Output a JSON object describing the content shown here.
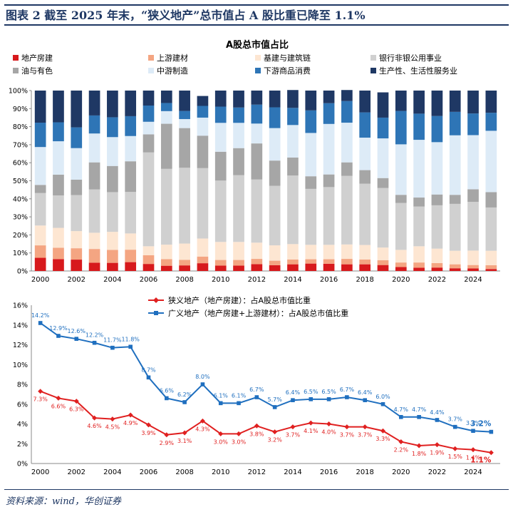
{
  "header": {
    "figure_title": "图表 2   截至 2025 年末，“狭义地产”总市值占 A 股比重已降至 1.1%",
    "source": "资料来源：wind，华创证券"
  },
  "chart_data": [
    {
      "type": "bar",
      "stacked": "percent",
      "title": "A股总市值占比",
      "xlabel": "",
      "ylabel": "",
      "ylim": [
        0,
        100
      ],
      "y_tick_suffix": "%",
      "y_ticks": [
        0,
        10,
        20,
        30,
        40,
        50,
        60,
        70,
        80,
        90,
        100
      ],
      "grid": false,
      "legend_position": "top",
      "categories": [
        "2000",
        "2001",
        "2002",
        "2003",
        "2004",
        "2005",
        "2006",
        "2007",
        "2008",
        "2009",
        "2010",
        "2011",
        "2012",
        "2013",
        "2014",
        "2015",
        "2016",
        "2017",
        "2018",
        "2019",
        "2020",
        "2021",
        "2022",
        "2023",
        "2024",
        "2025"
      ],
      "x_tick_labels": [
        "2000",
        "2002",
        "2004",
        "2006",
        "2008",
        "2010",
        "2012",
        "2014",
        "2016",
        "2018",
        "2020",
        "2022",
        "2024"
      ],
      "series": [
        {
          "name": "地产房建",
          "color": "#d7191c",
          "values": [
            7.3,
            6.6,
            6.3,
            4.6,
            4.5,
            4.9,
            3.9,
            2.9,
            3.1,
            4.3,
            3.0,
            3.0,
            3.8,
            3.2,
            3.7,
            4.1,
            4.0,
            3.7,
            3.7,
            3.3,
            2.2,
            1.8,
            1.9,
            1.5,
            1.4,
            1.1
          ]
        },
        {
          "name": "上游建材",
          "color": "#f4a582",
          "values": [
            6.9,
            6.3,
            6.3,
            7.6,
            7.2,
            6.9,
            4.8,
            3.7,
            3.1,
            3.7,
            3.1,
            3.1,
            2.9,
            2.5,
            2.7,
            2.4,
            2.5,
            3.0,
            2.7,
            2.7,
            2.5,
            2.9,
            2.5,
            2.2,
            1.9,
            2.1
          ]
        },
        {
          "name": "基建与建筑链",
          "color": "#fde6d2",
          "values": [
            11.0,
            11.0,
            9.5,
            9.0,
            10.0,
            9.0,
            5.0,
            8.0,
            9.0,
            10.0,
            10.0,
            10.0,
            9.0,
            8.5,
            8.5,
            8.0,
            8.0,
            8.0,
            8.0,
            7.0,
            7.0,
            9.0,
            8.0,
            7.5,
            8.0,
            8.0
          ]
        },
        {
          "name": "银行非银公用事业",
          "color": "#d0d0d0",
          "values": [
            18.0,
            18.0,
            20.0,
            24.0,
            22.0,
            23.0,
            52.0,
            42.0,
            42.0,
            39.0,
            34.0,
            37.0,
            35.0,
            33.0,
            38.0,
            31.0,
            32.0,
            38.0,
            34.0,
            33.0,
            26.0,
            22.0,
            24.0,
            26.0,
            27.0,
            24.0
          ]
        },
        {
          "name": "油与有色",
          "color": "#a6a6a6",
          "values": [
            4.5,
            11.5,
            8.5,
            15.0,
            14.5,
            17.0,
            10.0,
            25.0,
            22.0,
            18.0,
            16.0,
            15.0,
            20.0,
            14.0,
            10.0,
            7.0,
            7.0,
            7.5,
            7.5,
            5.5,
            4.5,
            5.0,
            6.0,
            5.0,
            7.0,
            8.5
          ]
        },
        {
          "name": "中游制造",
          "color": "#ddebf7",
          "values": [
            21.0,
            18.5,
            17.5,
            16.0,
            16.0,
            14.0,
            7.0,
            7.0,
            5.0,
            10.0,
            16.0,
            14.0,
            11.0,
            18.0,
            18.0,
            24.0,
            28.0,
            22.0,
            18.0,
            22.0,
            28.0,
            32.0,
            29.0,
            33.0,
            30.0,
            34.0
          ]
        },
        {
          "name": "下游商品消费",
          "color": "#2e75b6",
          "values": [
            13.5,
            10.5,
            11.5,
            10.0,
            11.0,
            11.0,
            9.0,
            4.5,
            4.5,
            6.5,
            9.0,
            8.5,
            10.5,
            11.5,
            9.5,
            12.5,
            11.5,
            12.0,
            14.0,
            11.5,
            18.5,
            14.5,
            14.5,
            13.0,
            12.0,
            10.0
          ]
        },
        {
          "name": "生产性、生活性服务业",
          "color": "#1f3864",
          "values": [
            17.8,
            17.6,
            20.4,
            13.8,
            14.8,
            14.2,
            8.3,
            6.9,
            11.3,
            5.5,
            8.9,
            9.4,
            7.8,
            9.3,
            9.9,
            11.0,
            7.0,
            6.1,
            12.1,
            14.0,
            11.3,
            12.8,
            14.1,
            11.8,
            12.7,
            12.3
          ]
        }
      ]
    },
    {
      "type": "line",
      "title": "",
      "xlabel": "",
      "ylabel": "",
      "ylim": [
        0,
        16
      ],
      "y_tick_suffix": "%",
      "y_ticks": [
        0,
        2,
        4,
        6,
        8,
        10,
        12,
        14,
        16
      ],
      "grid": false,
      "legend_position": "top",
      "x": [
        "2000",
        "2001",
        "2002",
        "2003",
        "2004",
        "2005",
        "2006",
        "2007",
        "2008",
        "2009",
        "2010",
        "2011",
        "2012",
        "2013",
        "2014",
        "2015",
        "2016",
        "2017",
        "2018",
        "2019",
        "2020",
        "2021",
        "2022",
        "2023",
        "2024",
        "2025"
      ],
      "x_tick_labels": [
        "2000",
        "2002",
        "2004",
        "2006",
        "2008",
        "2010",
        "2012",
        "2014",
        "2016",
        "2018",
        "2020",
        "2022",
        "2024"
      ],
      "series": [
        {
          "name": "狭义地产（地产房建）：占A股总市值比重",
          "color": "#e02020",
          "marker": "diamond",
          "values": [
            7.3,
            6.6,
            6.3,
            4.6,
            4.5,
            4.9,
            3.9,
            2.9,
            3.1,
            4.3,
            3.0,
            3.0,
            3.8,
            3.2,
            3.7,
            4.1,
            4.0,
            3.7,
            3.7,
            3.3,
            2.2,
            1.8,
            1.9,
            1.5,
            1.4,
            1.1
          ],
          "data_labels": [
            "7.3%",
            "6.6%",
            "6.3%",
            "4.6%",
            "4.5%",
            "4.9%",
            "3.9%",
            "2.9%",
            "3.1%",
            "4.3%",
            "3.0%",
            "3.0%",
            "3.8%",
            "3.2%",
            "3.7%",
            "4.1%",
            "4.0%",
            "3.7%",
            "3.7%",
            "3.3%",
            "2.2%",
            "1.8%",
            "1.9%",
            "1.5%",
            "1.4%",
            "1.1%"
          ]
        },
        {
          "name": "广义地产（地产房建+上游建材）：占A股总市值比重",
          "color": "#1f6fbf",
          "marker": "square",
          "values": [
            14.2,
            12.9,
            12.6,
            12.2,
            11.7,
            11.8,
            8.7,
            6.6,
            6.2,
            8.0,
            6.1,
            6.1,
            6.7,
            5.7,
            6.4,
            6.5,
            6.5,
            6.7,
            6.4,
            6.0,
            4.7,
            4.7,
            4.4,
            3.7,
            3.3,
            3.2
          ],
          "data_labels": [
            "14.2%",
            "12.9%",
            "12.6%",
            "12.2%",
            "11.7%",
            "11.8%",
            "8.7%",
            "6.6%",
            "6.2%",
            "8.0%",
            "6.1%",
            "6.1%",
            "6.7%",
            "5.7%",
            "6.4%",
            "6.5%",
            "6.5%",
            "6.7%",
            "6.4%",
            "6.0%",
            "4.7%",
            "4.7%",
            "4.4%",
            "3.7%",
            "3.3%",
            "3.2%"
          ]
        }
      ]
    }
  ]
}
